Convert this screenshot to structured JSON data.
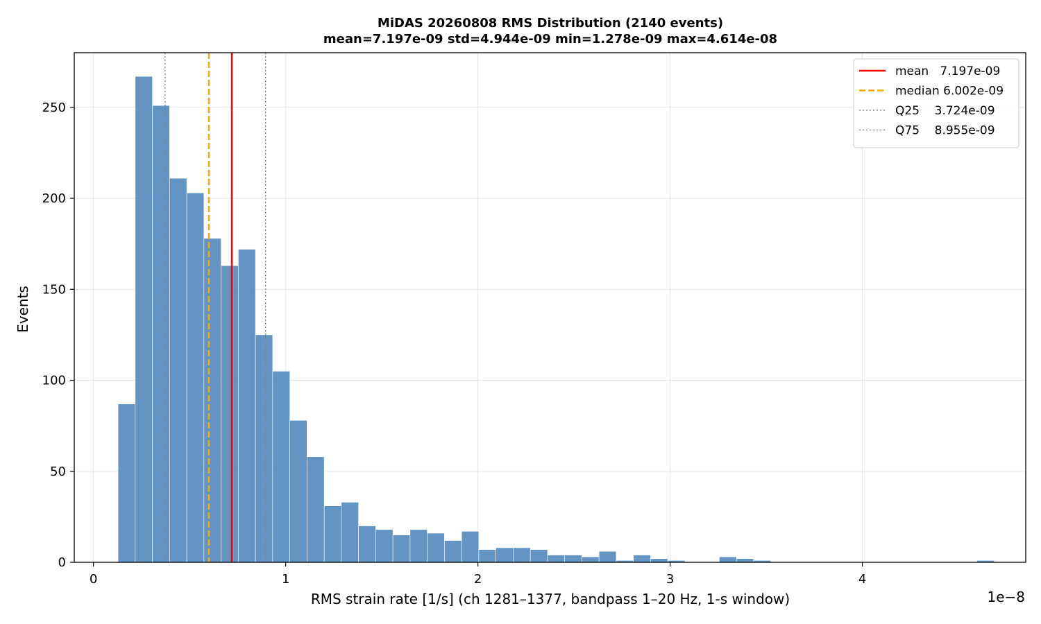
{
  "chart_data": {
    "type": "histogram",
    "title": "MiDAS 20260808  RMS Distribution  (2140 events)",
    "subtitle": "mean=7.197e-09  std=4.944e-09  min=1.278e-09  max=4.614e-08",
    "xlabel": "RMS strain rate [1/s]  (ch 1281–1377, bandpass 1–20 Hz, 1-s window)",
    "ylabel": "Events",
    "x_offset_label": "1e−8",
    "xlim": [
      -0.1,
      4.85
    ],
    "ylim": [
      0,
      280
    ],
    "x_ticks": [
      0,
      1,
      2,
      3,
      4
    ],
    "x_tick_labels": [
      "0",
      "1",
      "2",
      "3",
      "4"
    ],
    "y_ticks": [
      0,
      50,
      100,
      150,
      200,
      250
    ],
    "y_tick_labels": [
      "0",
      "50",
      "100",
      "150",
      "200",
      "250"
    ],
    "x_unit_scale": "1e-8",
    "bin_start": 0.1278,
    "bin_width": 0.08937,
    "counts": [
      87,
      267,
      251,
      211,
      203,
      178,
      163,
      172,
      125,
      105,
      78,
      58,
      31,
      33,
      20,
      18,
      15,
      18,
      16,
      12,
      17,
      7,
      8,
      8,
      7,
      4,
      4,
      3,
      6,
      1,
      4,
      2,
      1,
      0,
      0,
      3,
      2,
      1,
      0,
      0,
      0,
      0,
      0,
      0,
      0,
      0,
      0,
      0,
      0,
      0,
      1
    ],
    "bar_color": "#4f86b9",
    "grid": true,
    "legend_position": "top-right",
    "reference_lines": [
      {
        "name": "mean",
        "label_text": "mean   7.197e-09",
        "x": 0.7197,
        "color": "#ff0000",
        "style": "solid"
      },
      {
        "name": "median",
        "label_text": "median 6.002e-09",
        "x": 0.6002,
        "color": "#ffa500",
        "style": "dashed"
      },
      {
        "name": "Q25",
        "label_text": "Q25    3.724e-09",
        "x": 0.3724,
        "color": "#808080",
        "style": "dotted"
      },
      {
        "name": "Q75",
        "label_text": "Q75    8.955e-09",
        "x": 0.8955,
        "color": "#808080",
        "style": "dotted"
      }
    ]
  }
}
